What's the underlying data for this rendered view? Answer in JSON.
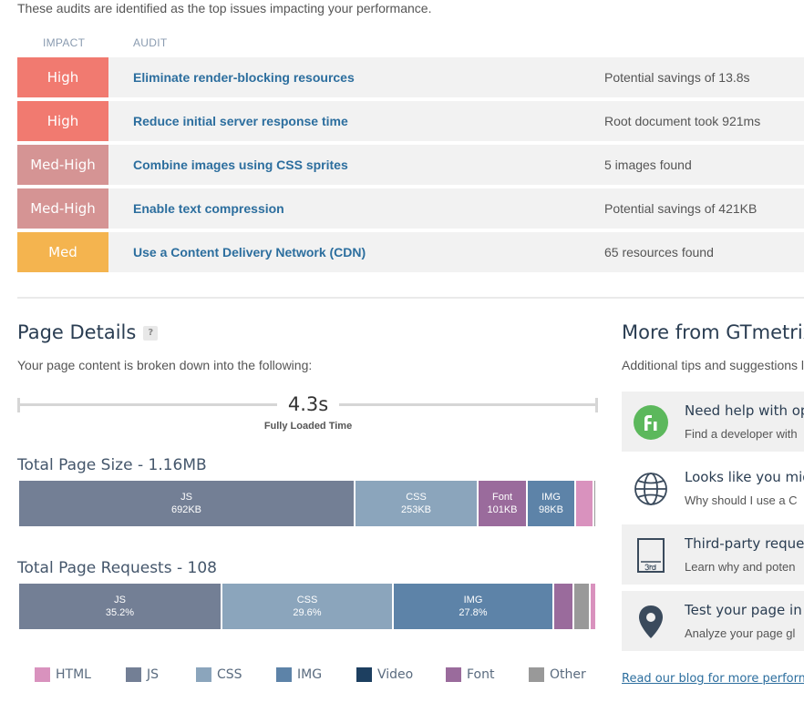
{
  "intro_text": "These audits are identified as the top issues impacting your performance.",
  "table_headers": {
    "impact": "IMPACT",
    "audit": "AUDIT"
  },
  "audits": [
    {
      "impact": "High",
      "impact_color": "#f17a70",
      "title": "Eliminate render-blocking resources",
      "detail": "Potential savings of 13.8s"
    },
    {
      "impact": "High",
      "impact_color": "#f17a70",
      "title": "Reduce initial server response time",
      "detail": "Root document took 921ms"
    },
    {
      "impact": "Med-High",
      "impact_color": "#d59494",
      "title": "Combine images using CSS sprites",
      "detail": "5 images found"
    },
    {
      "impact": "Med-High",
      "impact_color": "#d59494",
      "title": "Enable text compression",
      "detail": "Potential savings of 421KB"
    },
    {
      "impact": "Med",
      "impact_color": "#f4b44f",
      "title": "Use a Content Delivery Network (CDN)",
      "detail": "65 resources found"
    }
  ],
  "page_details": {
    "title": "Page Details",
    "help_label": "?",
    "subtitle": "Your page content is broken down into the following:",
    "fully_loaded_value": "4.3s",
    "fully_loaded_label": "Fully Loaded Time",
    "size_title": "Total Page Size - 1.16MB",
    "size_segments": [
      {
        "type": "JS",
        "value": "692KB",
        "fraction": 0.582,
        "color": "#737f95"
      },
      {
        "type": "CSS",
        "value": "253KB",
        "fraction": 0.213,
        "color": "#8ba5bc"
      },
      {
        "type": "Font",
        "value": "101KB",
        "fraction": 0.085,
        "color": "#9a6b9c"
      },
      {
        "type": "IMG",
        "value": "98KB",
        "fraction": 0.083,
        "color": "#5d83a8"
      },
      {
        "type": "",
        "value": "",
        "fraction": 0.032,
        "color": "#d992be"
      },
      {
        "type": "",
        "value": "",
        "fraction": 0.005,
        "color": "#999999"
      }
    ],
    "requests_title": "Total Page Requests - 108",
    "request_segments": [
      {
        "type": "JS",
        "value": "35.2%",
        "fraction": 0.352,
        "color": "#737f95"
      },
      {
        "type": "CSS",
        "value": "29.6%",
        "fraction": 0.296,
        "color": "#8ba5bc"
      },
      {
        "type": "IMG",
        "value": "27.8%",
        "fraction": 0.278,
        "color": "#5d83a8"
      },
      {
        "type": "",
        "value": "",
        "fraction": 0.035,
        "color": "#9a6b9c"
      },
      {
        "type": "",
        "value": "",
        "fraction": 0.028,
        "color": "#999999"
      },
      {
        "type": "",
        "value": "",
        "fraction": 0.011,
        "color": "#d992be"
      }
    ],
    "legend": [
      {
        "label": "HTML",
        "color": "#d992be"
      },
      {
        "label": "JS",
        "color": "#737f95"
      },
      {
        "label": "CSS",
        "color": "#8ba5bc"
      },
      {
        "label": "IMG",
        "color": "#5d83a8"
      },
      {
        "label": "Video",
        "color": "#1d3f60"
      },
      {
        "label": "Font",
        "color": "#9a6b9c"
      },
      {
        "label": "Other",
        "color": "#999999"
      }
    ]
  },
  "gtmetrix": {
    "title": "More from GTmetrix",
    "subtitle": "Additional tips and suggestions l",
    "cards": [
      {
        "icon": "gtmetrix-pro-icon",
        "title": "Need help with op",
        "text": "Find a developer with"
      },
      {
        "icon": "globe-icon",
        "title": "Looks like you mig",
        "text": "Why should I use a C"
      },
      {
        "icon": "third-party-icon",
        "title": "Third-party request",
        "text": "Learn why and poten"
      },
      {
        "icon": "map-pin-icon",
        "title": "Test your page in m",
        "text": "Analyze your page gl"
      }
    ],
    "blog_link": "Read our blog for more perform"
  }
}
